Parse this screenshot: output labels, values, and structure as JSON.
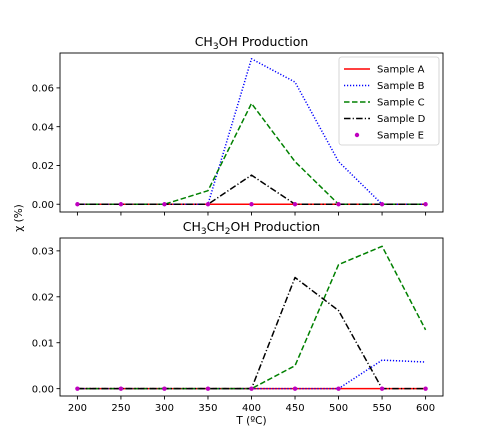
{
  "chart_data": [
    {
      "type": "line",
      "title": "CH3OH Production",
      "title_parts": {
        "pre": "CH",
        "sub1": "3",
        "post": "OH Production"
      },
      "x": [
        200,
        250,
        300,
        350,
        400,
        450,
        500,
        550,
        600
      ],
      "xlim": [
        180,
        620
      ],
      "ylim": [
        -0.004,
        0.078
      ],
      "yticks": [
        0.0,
        0.02,
        0.04,
        0.06
      ],
      "ytick_labels": [
        "0.00",
        "0.02",
        "0.04",
        "0.06"
      ],
      "series": [
        {
          "name": "Sample A",
          "color": "#ff0000",
          "style": "solid",
          "values": [
            0,
            0,
            0,
            0,
            0,
            0,
            0,
            0,
            0
          ]
        },
        {
          "name": "Sample B",
          "color": "#0000ff",
          "style": "dotted",
          "values": [
            0,
            0,
            0,
            0,
            0.075,
            0.063,
            0.022,
            0,
            0
          ]
        },
        {
          "name": "Sample C",
          "color": "#008000",
          "style": "dashed",
          "values": [
            0,
            0,
            0,
            0.007,
            0.052,
            0.022,
            0,
            0,
            0
          ]
        },
        {
          "name": "Sample D",
          "color": "#000000",
          "style": "dashdot",
          "values": [
            0,
            0,
            0,
            0,
            0.015,
            0,
            0,
            0,
            0
          ]
        },
        {
          "name": "Sample E",
          "color": "#bf00bf",
          "style": "points",
          "values": [
            0,
            0,
            0,
            0,
            0,
            0,
            0,
            0,
            0
          ]
        }
      ],
      "legend": "top-right"
    },
    {
      "type": "line",
      "title": "CH3CH2OH Production",
      "title_parts": {
        "pre": "CH",
        "sub1": "3",
        "mid": "CH",
        "sub2": "2",
        "post": "OH Production"
      },
      "x": [
        200,
        250,
        300,
        350,
        400,
        450,
        500,
        550,
        600
      ],
      "xlim": [
        180,
        620
      ],
      "ylim": [
        -0.0016,
        0.0328
      ],
      "yticks": [
        0.0,
        0.01,
        0.02,
        0.03
      ],
      "ytick_labels": [
        "0.00",
        "0.01",
        "0.02",
        "0.03"
      ],
      "xticks": [
        200,
        250,
        300,
        350,
        400,
        450,
        500,
        550,
        600
      ],
      "xtick_labels": [
        "200",
        "250",
        "300",
        "350",
        "400",
        "450",
        "500",
        "550",
        "600"
      ],
      "xlabel": "T (ºC)",
      "series": [
        {
          "name": "Sample A",
          "color": "#ff0000",
          "style": "solid",
          "values": [
            0,
            0,
            0,
            0,
            0,
            0,
            0,
            0,
            0
          ]
        },
        {
          "name": "Sample B",
          "color": "#0000ff",
          "style": "dotted",
          "values": [
            0,
            0,
            0,
            0,
            0,
            0,
            0,
            0.0062,
            0.0058
          ]
        },
        {
          "name": "Sample C",
          "color": "#008000",
          "style": "dashed",
          "values": [
            0,
            0,
            0,
            0,
            0,
            0.005,
            0.027,
            0.031,
            0.0128
          ]
        },
        {
          "name": "Sample D",
          "color": "#000000",
          "style": "dashdot",
          "values": [
            0,
            0,
            0,
            0,
            0,
            0.0242,
            0.017,
            0,
            0
          ]
        },
        {
          "name": "Sample E",
          "color": "#bf00bf",
          "style": "points",
          "values": [
            0,
            0,
            0,
            0,
            0,
            0,
            0,
            0,
            0
          ]
        }
      ]
    }
  ],
  "shared_ylabel": "χ (%)"
}
